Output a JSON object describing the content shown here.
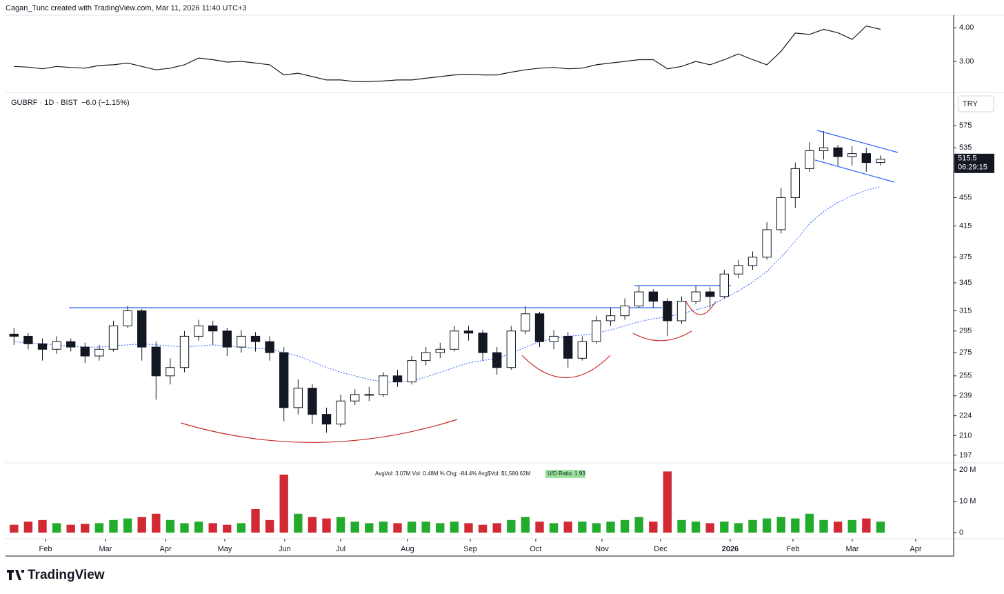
{
  "header": {
    "attribution": "Cagan_Tunc created with TradingView.com, Mar 11, 2026 11:40 UTC+3",
    "brand": "TradingView"
  },
  "chart_data": [
    {
      "type": "line",
      "series": [
        {
          "color": "#131722",
          "values": [
            2.85,
            2.83,
            2.78,
            2.85,
            2.82,
            2.8,
            2.88,
            2.9,
            2.95,
            2.85,
            2.75,
            2.8,
            2.9,
            3.1,
            3.05,
            2.98,
            3.0,
            2.95,
            2.9,
            2.6,
            2.65,
            2.55,
            2.45,
            2.45,
            2.4,
            2.4,
            2.42,
            2.45,
            2.45,
            2.5,
            2.55,
            2.6,
            2.62,
            2.6,
            2.6,
            2.68,
            2.75,
            2.8,
            2.82,
            2.78,
            2.8,
            2.9,
            2.95,
            3.0,
            3.05,
            3.05,
            2.78,
            2.85,
            3.0,
            2.9,
            3.05,
            3.22,
            3.05,
            2.9,
            3.3,
            3.84,
            3.8,
            3.95,
            3.85,
            3.65,
            4.05,
            3.95
          ]
        }
      ],
      "ylim": [
        2.1,
        4.37
      ],
      "yticks": [
        {
          "value": 3,
          "label": "3.00"
        },
        {
          "value": 4,
          "label": "4.00"
        }
      ]
    },
    {
      "type": "candlestick",
      "legend": "GUBRF · 1D · BIST",
      "change": "−6.0 (−1.15%)",
      "currency": "TRY",
      "countdown": "06:29:15",
      "log_scale": true,
      "up_color": "#ffffff",
      "down_color": "#131722",
      "open": [
        292,
        290,
        283,
        278,
        285,
        280,
        272,
        278,
        300,
        315,
        280,
        255,
        262,
        290,
        300,
        295,
        280,
        290,
        285,
        275,
        230,
        245,
        225,
        218,
        235,
        240,
        240,
        255,
        250,
        268,
        275,
        278,
        295,
        293,
        275,
        262,
        295,
        312,
        285,
        290,
        270,
        285,
        305,
        310,
        320,
        335,
        325,
        305,
        325,
        335,
        330,
        355,
        365,
        375,
        410,
        455,
        500,
        530,
        535,
        520,
        525,
        510
      ],
      "high": [
        298,
        293,
        288,
        290,
        288,
        284,
        282,
        305,
        320,
        317,
        285,
        270,
        295,
        306,
        305,
        298,
        296,
        294,
        290,
        280,
        252,
        248,
        230,
        240,
        244,
        246,
        258,
        260,
        272,
        280,
        284,
        300,
        300,
        296,
        280,
        300,
        320,
        314,
        296,
        294,
        290,
        310,
        318,
        328,
        342,
        338,
        328,
        330,
        342,
        340,
        360,
        372,
        382,
        420,
        470,
        510,
        545,
        565,
        540,
        538,
        535,
        522
      ],
      "low": [
        282,
        278,
        268,
        274,
        276,
        266,
        268,
        276,
        298,
        268,
        236,
        248,
        258,
        286,
        282,
        272,
        275,
        276,
        268,
        220,
        225,
        218,
        212,
        216,
        232,
        235,
        238,
        246,
        248,
        264,
        270,
        276,
        286,
        268,
        256,
        260,
        292,
        280,
        278,
        262,
        268,
        283,
        300,
        306,
        318,
        318,
        290,
        302,
        322,
        318,
        328,
        350,
        360,
        372,
        405,
        440,
        495,
        515,
        505,
        505,
        495,
        505
      ],
      "close": [
        290,
        283,
        278,
        285,
        280,
        272,
        278,
        300,
        315,
        280,
        255,
        262,
        290,
        300,
        295,
        280,
        290,
        285,
        275,
        230,
        245,
        225,
        218,
        235,
        240,
        240,
        255,
        250,
        268,
        275,
        278,
        295,
        293,
        275,
        262,
        295,
        312,
        285,
        290,
        270,
        285,
        305,
        310,
        320,
        335,
        325,
        305,
        325,
        335,
        330,
        355,
        365,
        375,
        410,
        455,
        500,
        530,
        535,
        520,
        525,
        510,
        515.5
      ],
      "series": [
        {
          "color": "#2962ff",
          "values": [
            285,
            284,
            283,
            282,
            281,
            280,
            280,
            281,
            282,
            283,
            282,
            281,
            280,
            281,
            282,
            281,
            280,
            279,
            278,
            275,
            272,
            267,
            262,
            258,
            255,
            252,
            250,
            250,
            251,
            254,
            258,
            262,
            266,
            268,
            270,
            274,
            280,
            285,
            288,
            290,
            291,
            293,
            296,
            300,
            304,
            307,
            309,
            312,
            316,
            320,
            328,
            336,
            346,
            358,
            375,
            395,
            418,
            435,
            448,
            458,
            466,
            472
          ]
        }
      ],
      "ylim": [
        192.6,
        639
      ],
      "yticks": [
        575,
        535,
        455,
        415,
        375,
        345,
        315,
        295,
        275,
        255,
        239,
        224,
        210,
        197
      ]
    },
    {
      "type": "bar",
      "stats": "AvgVol: 3.07M   Vol: 0.48M   % Chg: -84.4%   Avg$Vol: $1,580.62M",
      "ud_ratio": "U/D Ratio: 1.93",
      "up_color": "#22ab2c",
      "down_color": "#d12a35",
      "values": [
        2.5,
        3.5,
        4,
        3,
        2.5,
        2.8,
        3,
        4,
        4.5,
        5,
        6,
        4,
        3,
        3.5,
        3,
        2.5,
        3,
        7.5,
        4,
        18.5,
        6,
        5,
        4.5,
        5,
        3.5,
        3,
        3.5,
        3,
        3.5,
        3.5,
        3,
        3.5,
        3,
        2.5,
        3,
        4,
        5,
        3.5,
        3,
        3.5,
        3.5,
        3,
        3.5,
        4,
        5,
        3.5,
        19.5,
        4,
        3.5,
        3,
        3.5,
        3,
        4,
        4.5,
        5,
        4.5,
        6,
        4,
        3.5,
        4,
        4.5,
        3.5
      ],
      "ylim": [
        0,
        22
      ],
      "yticks": [
        0,
        {
          "value": 10,
          "label": "10 M"
        },
        {
          "value": 20,
          "label": "20 M"
        }
      ],
      "xlim": [
        -0.5,
        66.15
      ],
      "xticks": [
        {
          "value": 2.22,
          "label": "Feb"
        },
        {
          "value": 6.44,
          "label": "Mar"
        },
        {
          "value": 10.67,
          "label": "Apr"
        },
        {
          "value": 14.84,
          "label": "May"
        },
        {
          "value": 19.06,
          "label": "Jun"
        },
        {
          "value": 23.0,
          "label": "Jul"
        },
        {
          "value": 27.7,
          "label": "Aug"
        },
        {
          "value": 32.12,
          "label": "Sep"
        },
        {
          "value": 36.73,
          "label": "Oct"
        },
        {
          "value": 41.39,
          "label": "Nov"
        },
        {
          "value": 45.52,
          "label": "Dec"
        },
        {
          "value": 50.42,
          "label": "2026"
        },
        {
          "value": 54.84,
          "label": "Feb"
        },
        {
          "value": 59.01,
          "label": "Mar"
        },
        {
          "value": 63.48,
          "label": "Apr"
        }
      ]
    }
  ]
}
